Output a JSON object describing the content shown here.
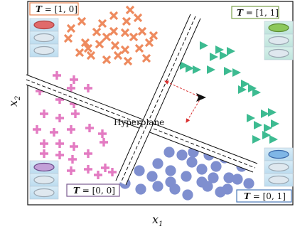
{
  "axes": {
    "x_label": "x",
    "x_sub": "1",
    "y_label": "x",
    "y_sub": "2"
  },
  "hyperplane_label": "Hyperplane",
  "regions": {
    "top_left": {
      "t_symbol": "T",
      "value": " = [1, 0]",
      "border": "#e8834f",
      "marker": "cross",
      "color": "#ee8a5e",
      "icon_color": "#e06a6a"
    },
    "top_right": {
      "t_symbol": "T",
      "value": " = [1, 1]",
      "border": "#7aa04a",
      "marker": "triangle",
      "color": "#3dbb91",
      "icon_color": "#8cc85a"
    },
    "bottom_left": {
      "t_symbol": "T",
      "value": " = [0, 0]",
      "border": "#7a5a90",
      "marker": "plus",
      "color": "#e37bc2",
      "icon_color": "#c3a0d8"
    },
    "bottom_right": {
      "t_symbol": "T",
      "value": " = [0, 1]",
      "border": "#4a78b8",
      "marker": "circle",
      "color": "#7f8fcf",
      "icon_color": "#7fb6e6"
    }
  },
  "colors": {
    "frame": "#111111",
    "arrow": "#d93030",
    "point": "#111111"
  }
}
